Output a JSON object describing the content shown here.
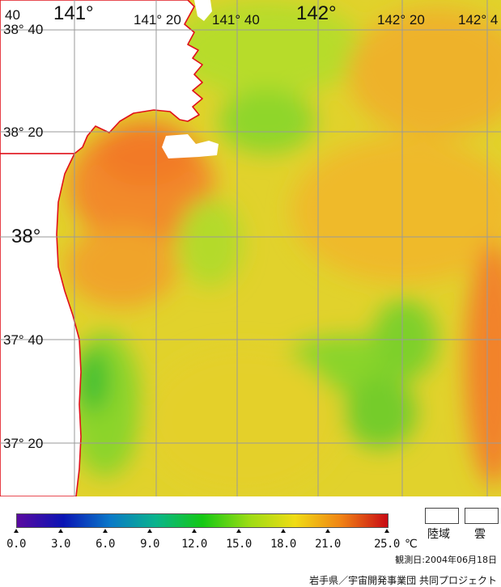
{
  "map": {
    "lon_labels": [
      "141°",
      "141° 20",
      "141° 40",
      "142°",
      "142° 20",
      "142° 4"
    ],
    "lat_labels": [
      "38° 40",
      "38° 20",
      "38°",
      "37° 40",
      "37° 20"
    ],
    "corner_label": "40",
    "colors": {
      "land": "#ffffff",
      "coast": "#e0101a",
      "grid": "#9a9a9a",
      "warm_water": "#f07a2a",
      "mid_water": "#e6cf2a",
      "cool_water": "#7ed42a"
    }
  },
  "legend": {
    "scale_ticks": [
      "0.0",
      "3.0",
      "6.0",
      "9.0",
      "12.0",
      "15.0",
      "18.0",
      "21.0",
      "25.0"
    ],
    "unit": "℃",
    "scale_colors": [
      "#5a0aa0",
      "#0a14b4",
      "#0a78c8",
      "#0ab48c",
      "#14c814",
      "#9bdc14",
      "#f0dc14",
      "#f08214",
      "#c80a14"
    ],
    "land_label": "陸域",
    "cloud_label": "雲"
  },
  "observation": "観測日:2004年06月18日",
  "credit": "岩手県／宇宙開発事業団 共同プロジェクト"
}
